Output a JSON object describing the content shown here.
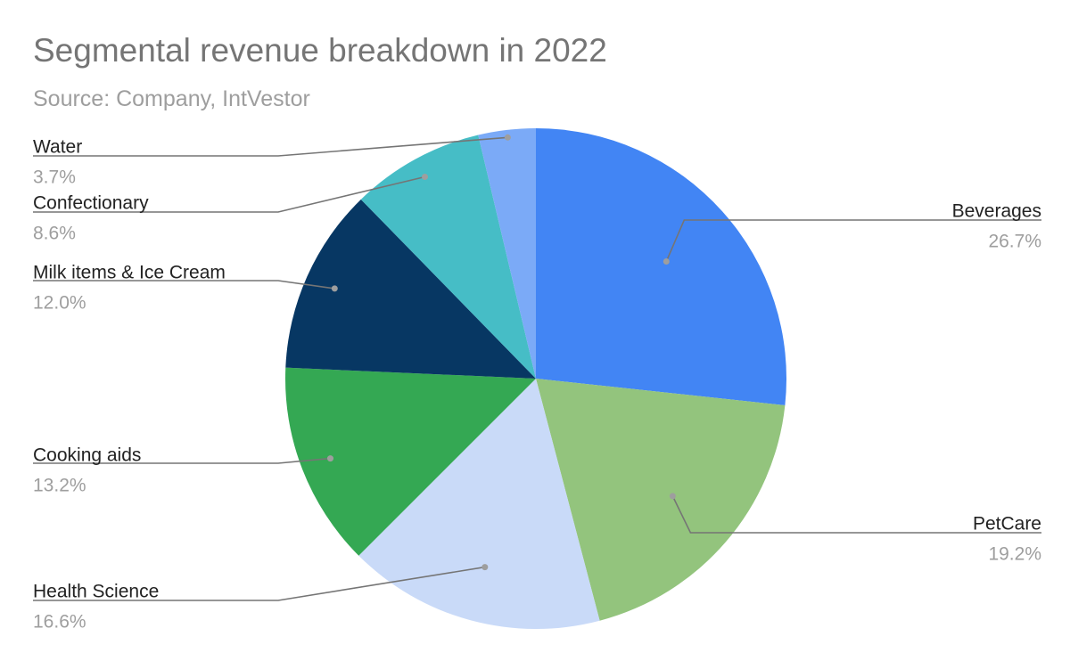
{
  "chart_data": {
    "type": "pie",
    "title": "Segmental revenue breakdown in 2022",
    "subtitle": "Source: Company, IntVestor",
    "slices": [
      {
        "label": "Beverages",
        "value": 26.7,
        "display": "26.7%",
        "color": "#4285f4"
      },
      {
        "label": "PetCare",
        "value": 19.2,
        "display": "19.2%",
        "color": "#93c47d"
      },
      {
        "label": "Health Science",
        "value": 16.6,
        "display": "16.6%",
        "color": "#c9daf8"
      },
      {
        "label": "Cooking aids",
        "value": 13.2,
        "display": "13.2%",
        "color": "#34a853"
      },
      {
        "label": "Milk items & Ice Cream",
        "value": 12.0,
        "display": "12.0%",
        "color": "#073763"
      },
      {
        "label": "Confectionary",
        "value": 8.6,
        "display": "8.6%",
        "color": "#46bdc6"
      },
      {
        "label": "Water",
        "value": 3.7,
        "display": "3.7%",
        "color": "#7baaf7"
      }
    ],
    "start_angle": "12 o'clock",
    "direction": "clockwise",
    "legend": "none (leader-line labels)"
  }
}
